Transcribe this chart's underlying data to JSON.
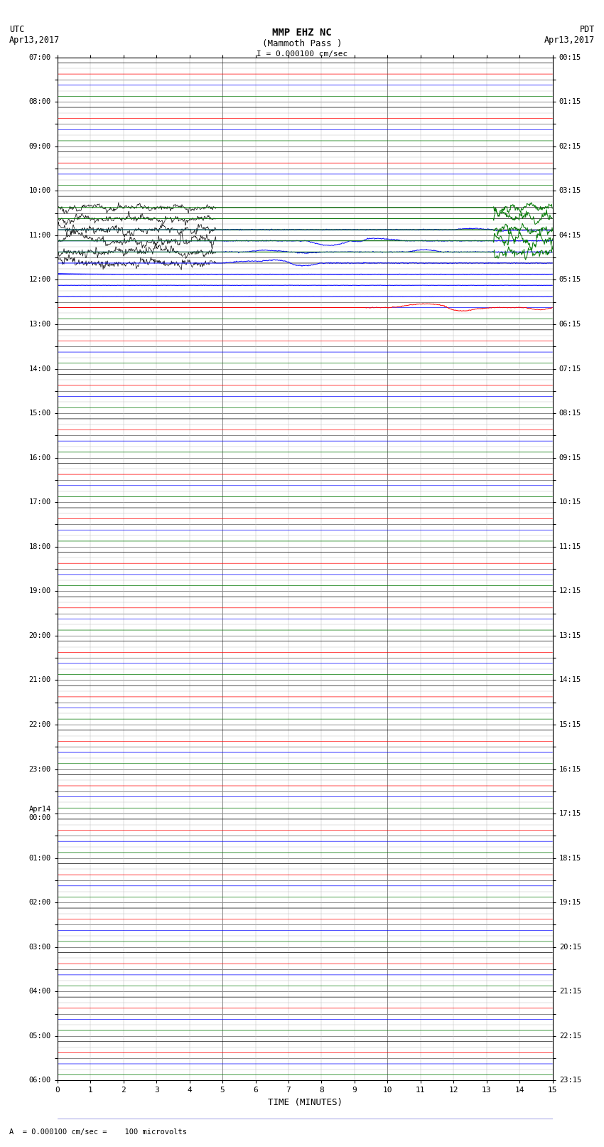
{
  "title_line1": "MMP EHZ NC",
  "title_line2": "(Mammoth Pass )",
  "title_line3": "I = 0.000100 cm/sec",
  "left_label_top": "UTC",
  "left_label_date": "Apr13,2017",
  "right_label_top": "PDT",
  "right_label_date": "Apr13,2017",
  "xlabel": "TIME (MINUTES)",
  "footer": "A  = 0.000100 cm/sec =    100 microvolts",
  "bg_color": "#ffffff",
  "grid_color_major": "#888888",
  "grid_color_minor": "#bbbbbb",
  "utc_labels": [
    "07:00",
    "",
    "08:00",
    "",
    "09:00",
    "",
    "10:00",
    "",
    "11:00",
    "",
    "12:00",
    "",
    "13:00",
    "",
    "14:00",
    "",
    "15:00",
    "",
    "16:00",
    "",
    "17:00",
    "",
    "18:00",
    "",
    "19:00",
    "",
    "20:00",
    "",
    "21:00",
    "",
    "22:00",
    "",
    "23:00",
    "",
    "Apr14\n00:00",
    "",
    "01:00",
    "",
    "02:00",
    "",
    "03:00",
    "",
    "04:00",
    "",
    "05:00",
    "",
    "06:00",
    ""
  ],
  "pdt_labels": [
    "00:15",
    "",
    "01:15",
    "",
    "02:15",
    "",
    "03:15",
    "",
    "04:15",
    "",
    "05:15",
    "",
    "06:15",
    "",
    "07:15",
    "",
    "08:15",
    "",
    "09:15",
    "",
    "10:15",
    "",
    "11:15",
    "",
    "12:15",
    "",
    "13:15",
    "",
    "14:15",
    "",
    "15:15",
    "",
    "16:15",
    "",
    "17:15",
    "",
    "18:15",
    "",
    "19:15",
    "",
    "20:15",
    "",
    "21:15",
    "",
    "22:15",
    "",
    "23:15",
    ""
  ],
  "n_rows": 92,
  "row_colors": [
    "black",
    "red",
    "blue",
    "green"
  ],
  "signal_scale": 0.38,
  "base_noise_amp": 0.012,
  "pts_per_row": 900
}
